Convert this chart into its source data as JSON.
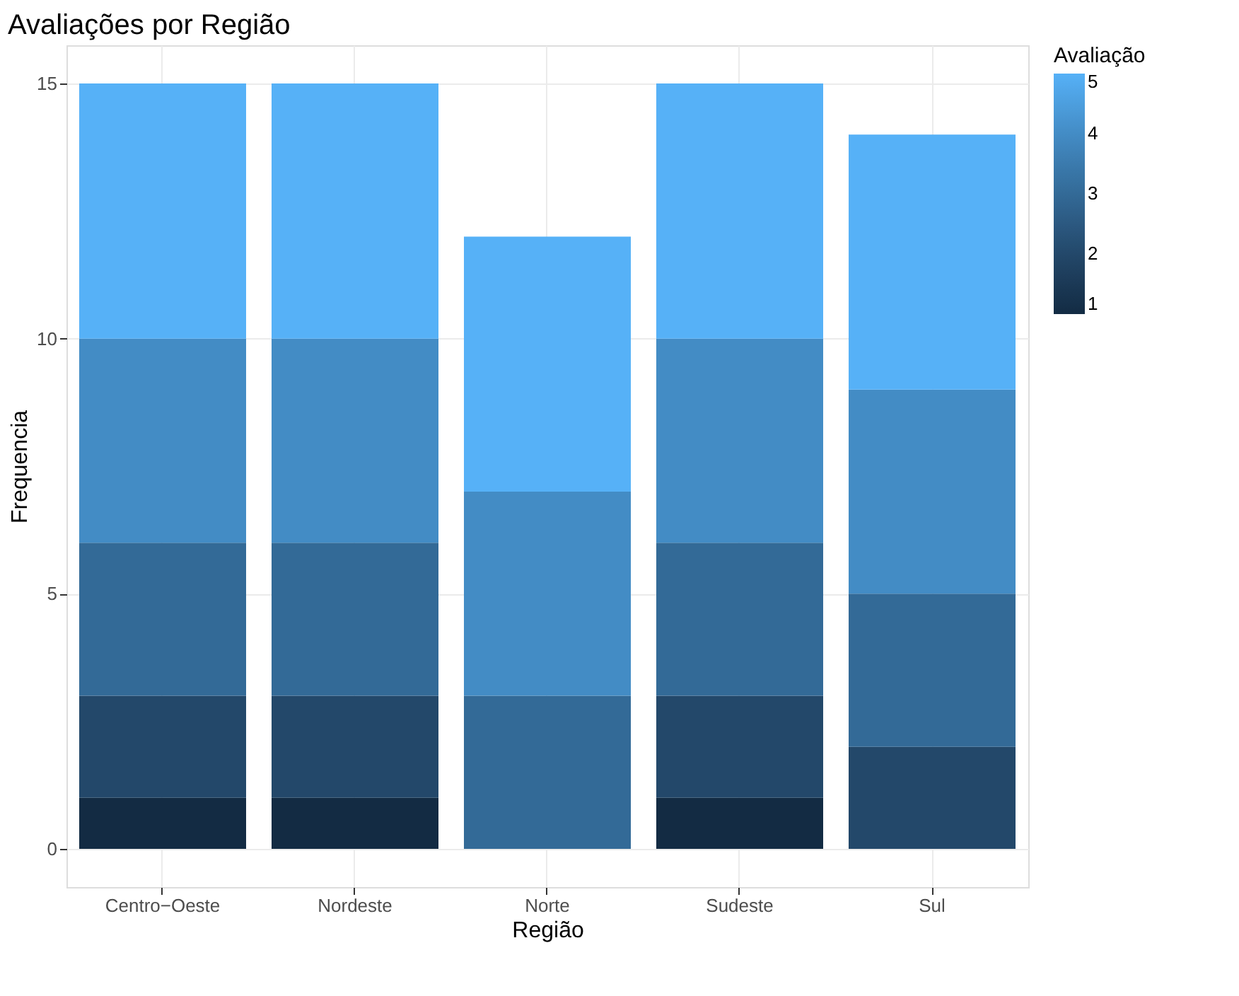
{
  "chart_data": {
    "type": "bar",
    "stacked": true,
    "title": "Avaliações por Região",
    "xlabel": "Região",
    "ylabel": "Frequencia",
    "clabel": "Avaliação",
    "categories": [
      "Centro−Oeste",
      "Nordeste",
      "Norte",
      "Sudeste",
      "Sul"
    ],
    "series": [
      {
        "name": "1",
        "color": "#132b43",
        "values": [
          1,
          1,
          0,
          1,
          0
        ]
      },
      {
        "name": "2",
        "color": "#23486a",
        "values": [
          2,
          2,
          0,
          2,
          2
        ]
      },
      {
        "name": "3",
        "color": "#336a97",
        "values": [
          3,
          3,
          3,
          3,
          3
        ]
      },
      {
        "name": "4",
        "color": "#438cc5",
        "values": [
          4,
          4,
          4,
          4,
          4
        ]
      },
      {
        "name": "5",
        "color": "#56b1f7",
        "values": [
          5,
          5,
          5,
          5,
          5
        ]
      }
    ],
    "clim": [
      1,
      5
    ],
    "cticks": [
      1,
      2,
      3,
      4,
      5
    ],
    "ylim": [
      -0.75,
      15.75
    ],
    "yticks": [
      0,
      5,
      10,
      15
    ],
    "grid": true
  }
}
